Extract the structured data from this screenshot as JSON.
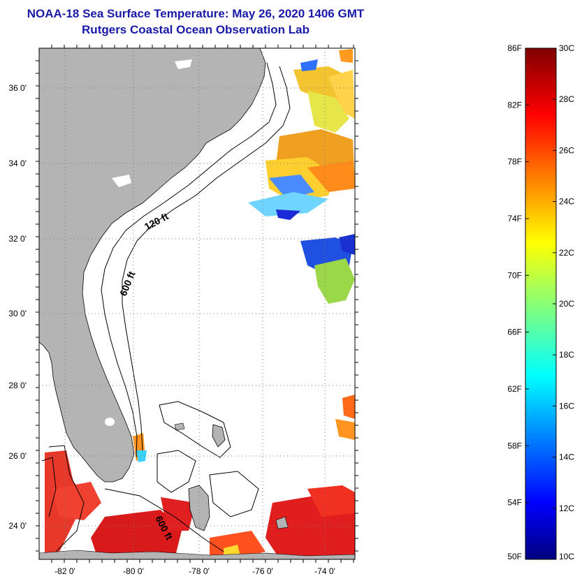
{
  "header": {
    "title": "NOAA-18 Sea Surface Temperature:  May 26, 2020 1406 GMT",
    "subtitle": "Rutgers Coastal Ocean Observation Lab"
  },
  "map": {
    "lon_range": [
      -83,
      -73
    ],
    "lat_range": [
      23,
      37
    ],
    "lon_ticks": [
      {
        "value": -82,
        "label": "-82 0'"
      },
      {
        "value": -80,
        "label": "-80 0'"
      },
      {
        "value": -78,
        "label": "-78 0'"
      },
      {
        "value": -76,
        "label": "-76 0'"
      },
      {
        "value": -74,
        "label": "-74 0'"
      }
    ],
    "lat_ticks": [
      {
        "value": 36,
        "label": "36 0'"
      },
      {
        "value": 34,
        "label": "34 0'"
      },
      {
        "value": 32,
        "label": "32 0'"
      },
      {
        "value": 30,
        "label": "30 0'"
      },
      {
        "value": 28,
        "label": "28 0'"
      },
      {
        "value": 26,
        "label": "26 0'"
      },
      {
        "value": 24,
        "label": "24 0'"
      }
    ],
    "contour_labels": {
      "shelf_120": "120 ft",
      "slope_600": "600 ft",
      "bahamas_600": "600 ft"
    },
    "colors": {
      "land": "#b4b4b4",
      "ocean": "#ffffff",
      "grid": "#7a7a7a"
    }
  },
  "colorbar": {
    "f_labels": [
      "86F",
      "82F",
      "78F",
      "74F",
      "70F",
      "66F",
      "62F",
      "58F",
      "54F",
      "50F"
    ],
    "c_labels": [
      "30C",
      "28C",
      "26C",
      "24C",
      "22C",
      "20C",
      "18C",
      "16C",
      "14C",
      "12C",
      "10C"
    ],
    "range_c": [
      10,
      30
    ],
    "range_f": [
      50,
      86
    ]
  }
}
